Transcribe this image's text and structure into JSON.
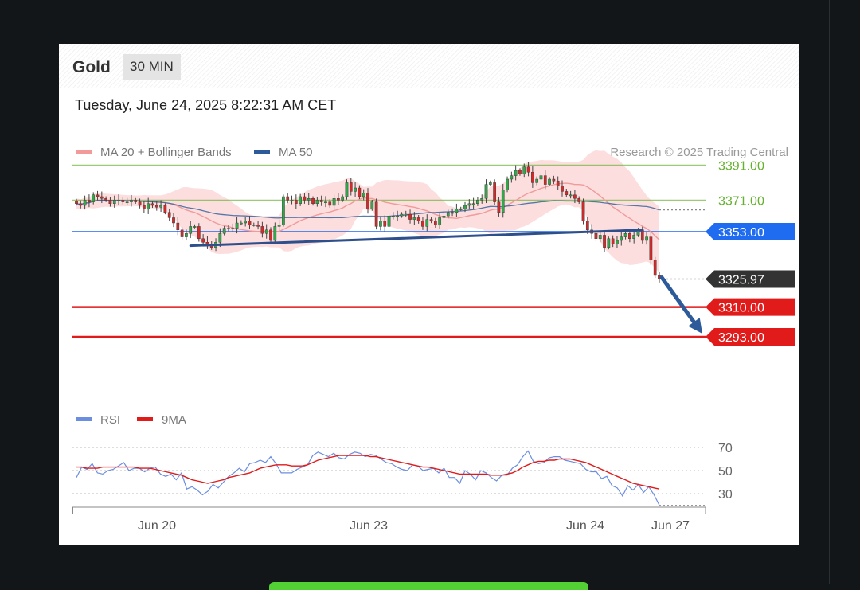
{
  "header": {
    "instrument": "Gold",
    "timeframe": "30 MIN",
    "datetime": "Tuesday, June 24, 2025 8:22:31 AM CET"
  },
  "legend_top": {
    "ma20_label": "MA 20 + Bollinger Bands",
    "ma50_label": "MA 50",
    "credit": "Research © 2025 Trading Central"
  },
  "legend_bottom": {
    "rsi_label": "RSI",
    "ma9_label": "9MA"
  },
  "colors": {
    "background": "#121619",
    "resistance_green": "#64b12e",
    "pivot_blue": "#1f6cf0",
    "support_red": "#e11a1a",
    "price_tag": "#333333",
    "ma20": "#f29a9a",
    "ma50": "#2d5b9a",
    "trendline": "#2d4f8c",
    "arrow": "#2d5b9a",
    "candle_up": "#31a64a",
    "candle_down": "#cf2b2b",
    "rsi": "#6b8ee0",
    "rsi_ma": "#e11a1a"
  },
  "chart_data": {
    "type": "candlestick",
    "title": "Gold",
    "timeframe": "30 MIN",
    "x_tick_labels": [
      "Jun 20",
      "Jun 23",
      "Jun 24",
      "Jun 27"
    ],
    "y_range": [
      3290,
      3397
    ],
    "levels": [
      {
        "name": "resistance_2",
        "value": 3391.0,
        "label": "3391.00",
        "style": "green"
      },
      {
        "name": "resistance_1",
        "value": 3371.0,
        "label": "3371.00",
        "style": "green"
      },
      {
        "name": "pivot",
        "value": 3353.0,
        "label": "3353.00",
        "style": "blue"
      },
      {
        "name": "last_price",
        "value": 3325.97,
        "label": "3325.97",
        "style": "dark"
      },
      {
        "name": "support_1",
        "value": 3310.0,
        "label": "3310.00",
        "style": "red"
      },
      {
        "name": "support_2",
        "value": 3293.0,
        "label": "3293.00",
        "style": "red"
      }
    ],
    "closes": [
      3369,
      3368,
      3371,
      3370,
      3374,
      3373,
      3372,
      3371,
      3369,
      3371,
      3371,
      3370,
      3370,
      3371,
      3370,
      3368,
      3366,
      3369,
      3368,
      3367,
      3368,
      3364,
      3361,
      3358,
      3354,
      3350,
      3352,
      3356,
      3356,
      3349,
      3347,
      3346,
      3344,
      3347,
      3352,
      3355,
      3355,
      3355,
      3358,
      3358,
      3359,
      3357,
      3357,
      3356,
      3352,
      3354,
      3348,
      3356,
      3357,
      3373,
      3371,
      3371,
      3369,
      3373,
      3371,
      3372,
      3369,
      3371,
      3370,
      3370,
      3368,
      3372,
      3371,
      3373,
      3381,
      3376,
      3378,
      3373,
      3375,
      3366,
      3370,
      3356,
      3359,
      3356,
      3362,
      3362,
      3362,
      3363,
      3363,
      3360,
      3361,
      3359,
      3356,
      3360,
      3359,
      3357,
      3361,
      3362,
      3364,
      3364,
      3366,
      3366,
      3368,
      3369,
      3369,
      3371,
      3372,
      3380,
      3381,
      3370,
      3364,
      3377,
      3383,
      3385,
      3388,
      3386,
      3390,
      3387,
      3381,
      3383,
      3385,
      3380,
      3383,
      3382,
      3379,
      3376,
      3374,
      3374,
      3372,
      3370,
      3359,
      3354,
      3352,
      3349,
      3351,
      3344,
      3349,
      3346,
      3348,
      3350,
      3352,
      3349,
      3351,
      3354,
      3348,
      3350,
      3337,
      3328,
      3325.97
    ],
    "trendline": [
      {
        "index": 27,
        "value": 3345
      },
      {
        "index": 134,
        "value": 3354
      }
    ],
    "forecast_arrow": {
      "from_index": 138,
      "from_value": 3325.97,
      "to_value": 3293
    },
    "rsi": {
      "y_ticks": [
        70,
        50,
        30
      ],
      "ylim": [
        20,
        80
      ],
      "rsi_values": [
        44,
        53,
        51,
        56,
        48,
        47,
        50,
        51,
        54,
        57,
        50,
        52,
        52,
        49,
        52,
        53,
        47,
        45,
        47,
        42,
        48,
        34,
        36,
        33,
        29,
        32,
        38,
        35,
        40,
        45,
        48,
        52,
        49,
        56,
        57,
        59,
        57,
        62,
        56,
        48,
        48,
        48,
        51,
        53,
        55,
        63,
        66,
        64,
        62,
        65,
        61,
        60,
        64,
        66,
        65,
        62,
        64,
        63,
        60,
        57,
        56,
        53,
        51,
        50,
        55,
        54,
        50,
        51,
        52,
        48,
        52,
        44,
        44,
        39,
        50,
        47,
        42,
        50,
        48,
        44,
        41,
        46,
        46,
        52,
        55,
        62,
        67,
        58,
        56,
        57,
        61,
        62,
        62,
        59,
        58,
        57,
        56,
        51,
        49,
        49,
        43,
        45,
        37,
        35,
        28,
        37,
        33,
        38,
        31,
        36,
        29,
        20
      ],
      "rsi_ma_values": [
        53,
        53,
        52,
        52,
        52,
        53,
        53,
        53,
        53,
        53,
        53,
        53,
        52,
        52,
        52,
        51,
        50,
        49,
        48,
        47,
        46,
        44,
        42,
        41,
        40,
        39,
        40,
        41,
        42,
        44,
        45,
        46,
        47,
        48,
        50,
        52,
        53,
        54,
        55,
        55,
        55,
        54,
        54,
        54,
        55,
        57,
        59,
        60,
        61,
        62,
        63,
        63,
        63,
        63,
        63,
        63,
        62,
        62,
        61,
        60,
        59,
        58,
        57,
        56,
        55,
        54,
        53,
        53,
        52,
        51,
        50,
        49,
        48,
        47,
        47,
        47,
        47,
        47,
        47,
        46,
        46,
        46,
        47,
        48,
        50,
        53,
        55,
        57,
        58,
        58,
        59,
        59,
        60,
        60,
        60,
        59,
        58,
        57,
        55,
        53,
        51,
        49,
        47,
        45,
        43,
        41,
        39,
        38,
        37,
        36,
        35,
        34
      ]
    }
  }
}
